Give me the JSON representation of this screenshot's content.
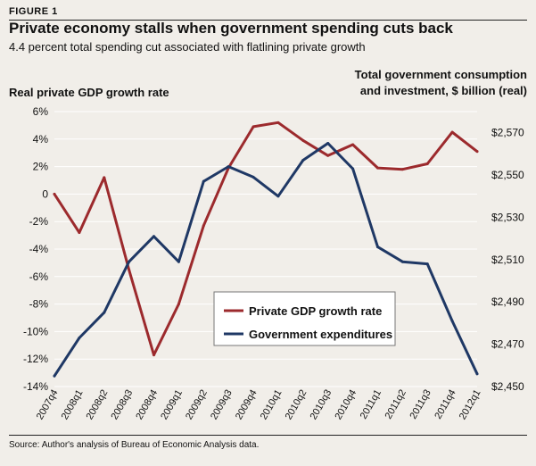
{
  "figure_label": "FIGURE 1",
  "title": "Private economy stalls when government spending cuts back",
  "subtitle": "4.4 percent total spending cut associated with flatlining private growth",
  "source": "Source: Author's analysis of Bureau of Economic Analysis data.",
  "colors": {
    "gdp": "#9c2a2d",
    "gov": "#1f3865",
    "background": "#f1eee9",
    "grid": "#ffffff"
  },
  "chart_data": {
    "type": "line",
    "grid": true,
    "legend_position": "center-right",
    "categories": [
      "2007q4",
      "2008q1",
      "2008q2",
      "2008q3",
      "2008q4",
      "2009q1",
      "2009q2",
      "2009q3",
      "2009q4",
      "2010q1",
      "2010q2",
      "2010q3",
      "2010q4",
      "2011q1",
      "2011q2",
      "2011q3",
      "2011q4",
      "2012q1"
    ],
    "left_axis": {
      "title": "Real private GDP growth rate",
      "ylim": [
        -14,
        6
      ],
      "ticks": [
        6,
        4,
        2,
        0,
        -2,
        -4,
        -6,
        -8,
        -10,
        -12,
        -14
      ],
      "tick_labels": [
        "6%",
        "4%",
        "2%",
        "0",
        "-2%",
        "-4%",
        "-6%",
        "-8%",
        "-10%",
        "-12%",
        "-14%"
      ]
    },
    "right_axis": {
      "title_line1": "Total government consumption",
      "title_line2": "and investment, $ billion (real)",
      "ylim": [
        2450,
        2580
      ],
      "ticks": [
        2570,
        2550,
        2530,
        2510,
        2490,
        2470,
        2450
      ],
      "tick_labels": [
        "$2,570",
        "$2,550",
        "$2,530",
        "$2,510",
        "$2,490",
        "$2,470",
        "$2,450"
      ]
    },
    "series": [
      {
        "name": "Private GDP growth rate",
        "axis": "left",
        "color": "#9c2a2d",
        "values": [
          0.0,
          -2.8,
          1.2,
          -5.5,
          -11.7,
          -8.0,
          -2.3,
          1.9,
          4.9,
          5.2,
          3.9,
          2.8,
          3.6,
          1.9,
          1.8,
          2.2,
          4.5,
          3.1
        ]
      },
      {
        "name": "Government expenditures",
        "axis": "right",
        "color": "#1f3865",
        "values": [
          2455,
          2473,
          2485,
          2509,
          2521,
          2509,
          2547,
          2554,
          2549,
          2540,
          2557,
          2565,
          2553,
          2516,
          2509,
          2508,
          2481,
          2456
        ]
      }
    ]
  }
}
